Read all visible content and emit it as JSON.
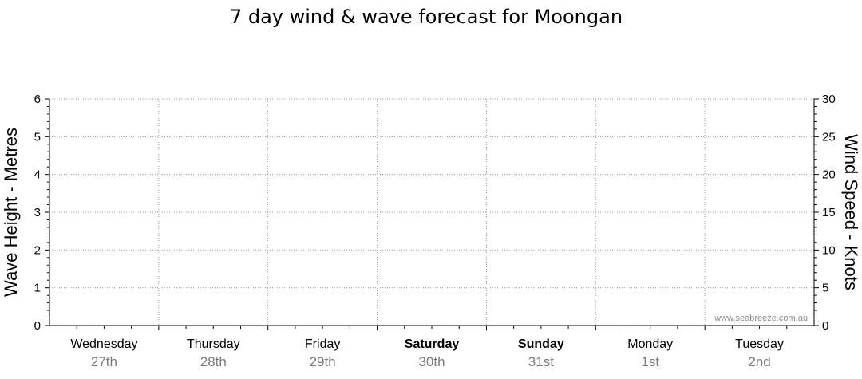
{
  "chart_data": {
    "type": "line",
    "title": "7 day wind & wave forecast for Moongan",
    "left_axis": {
      "label": "Wave Height - Metres",
      "ylim": [
        0,
        6
      ],
      "ticks": [
        "0",
        "1",
        "2",
        "3",
        "4",
        "5",
        "6"
      ]
    },
    "right_axis": {
      "label": "Wind Speed - Knots",
      "ylim": [
        0,
        30
      ],
      "ticks": [
        "0",
        "5",
        "10",
        "15",
        "20",
        "25",
        "30"
      ]
    },
    "days": [
      {
        "name": "Wednesday",
        "date": "27th",
        "weekend": false
      },
      {
        "name": "Thursday",
        "date": "28th",
        "weekend": false
      },
      {
        "name": "Friday",
        "date": "29th",
        "weekend": false
      },
      {
        "name": "Saturday",
        "date": "30th",
        "weekend": true
      },
      {
        "name": "Sunday",
        "date": "31st",
        "weekend": true
      },
      {
        "name": "Monday",
        "date": "1st",
        "weekend": false
      },
      {
        "name": "Tuesday",
        "date": "2nd",
        "weekend": false
      }
    ],
    "series": [],
    "grid": true,
    "watermark": "www.seabreeze.com.au",
    "colors": {
      "axis": "#000000",
      "grid": "#9a9a9a",
      "date_text": "#7a7a7a",
      "watermark": "#8c8c8c"
    }
  }
}
